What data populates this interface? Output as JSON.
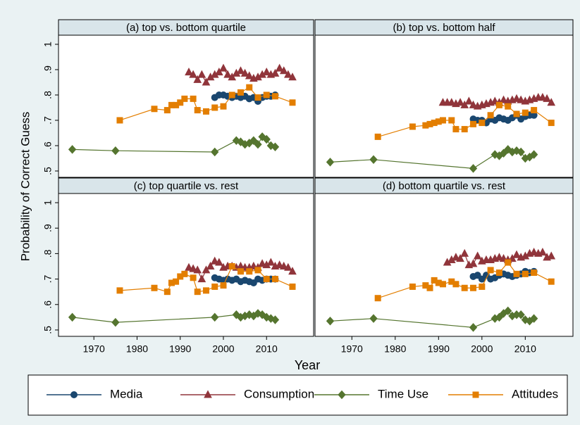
{
  "axis_labels": {
    "y": "Probability of Correct Guess",
    "x": "Year"
  },
  "chart_data": [
    {
      "type": "line",
      "title": "(a) top vs. bottom quartile",
      "xlim": [
        1961.8,
        2020.9
      ],
      "ylim": [
        0.475,
        1.036
      ],
      "yticks": [
        {
          "value": 0.5,
          "label": ".5"
        },
        {
          "value": 0.6,
          "label": ".6"
        },
        {
          "value": 0.7,
          "label": ".7"
        },
        {
          "value": 0.8,
          "label": ".8"
        },
        {
          "value": 0.9,
          "label": ".9"
        },
        1
      ],
      "series": [
        {
          "name": "Media",
          "color": "#1a476f",
          "marker": "circle",
          "x": [
            1998,
            1999,
            2000,
            2001,
            2002,
            2003,
            2004,
            2005,
            2006,
            2007,
            2008,
            2009,
            2010,
            2011,
            2012
          ],
          "values": [
            0.79,
            0.8,
            0.8,
            0.795,
            0.79,
            0.795,
            0.79,
            0.795,
            0.785,
            0.79,
            0.775,
            0.79,
            0.795,
            0.795,
            0.8
          ]
        },
        {
          "name": "Consumption",
          "color": "#90353b",
          "marker": "triangle",
          "x": [
            1992,
            1993,
            1994,
            1995,
            1996,
            1997,
            1998,
            1999,
            2000,
            2001,
            2002,
            2003,
            2004,
            2005,
            2006,
            2007,
            2008,
            2009,
            2010,
            2011,
            2012,
            2013,
            2014,
            2015,
            2016
          ],
          "values": [
            0.89,
            0.88,
            0.86,
            0.88,
            0.85,
            0.87,
            0.88,
            0.89,
            0.905,
            0.88,
            0.87,
            0.885,
            0.895,
            0.885,
            0.875,
            0.865,
            0.87,
            0.88,
            0.89,
            0.88,
            0.885,
            0.905,
            0.895,
            0.88,
            0.87
          ]
        },
        {
          "name": "Time Use",
          "color": "#55752f",
          "marker": "diamond",
          "x": [
            1965,
            1975,
            1998,
            2003,
            2004,
            2005,
            2006,
            2007,
            2008,
            2009,
            2010,
            2011,
            2012
          ],
          "values": [
            0.585,
            0.58,
            0.575,
            0.62,
            0.615,
            0.605,
            0.61,
            0.62,
            0.605,
            0.635,
            0.625,
            0.6,
            0.595
          ]
        },
        {
          "name": "Attitudes",
          "color": "#e37e00",
          "marker": "square",
          "x": [
            1976,
            1984,
            1987,
            1988,
            1989,
            1990,
            1991,
            1993,
            1994,
            1996,
            1998,
            2000,
            2002,
            2004,
            2006,
            2008,
            2010,
            2012,
            2016
          ],
          "values": [
            0.7,
            0.745,
            0.74,
            0.76,
            0.76,
            0.77,
            0.785,
            0.785,
            0.74,
            0.735,
            0.75,
            0.755,
            0.8,
            0.81,
            0.83,
            0.79,
            0.8,
            0.795,
            0.77
          ]
        }
      ]
    },
    {
      "type": "line",
      "title": "(b) top vs. bottom half",
      "xlim": [
        1961.5,
        2021
      ],
      "ylim": [
        0.475,
        1.036
      ],
      "series": [
        {
          "name": "Media",
          "color": "#1a476f",
          "marker": "circle",
          "x": [
            1998,
            1999,
            2000,
            2001,
            2002,
            2003,
            2004,
            2005,
            2006,
            2007,
            2008,
            2009,
            2010,
            2011,
            2012
          ],
          "values": [
            0.705,
            0.7,
            0.7,
            0.69,
            0.705,
            0.7,
            0.71,
            0.705,
            0.7,
            0.71,
            0.72,
            0.705,
            0.715,
            0.72,
            0.72
          ]
        },
        {
          "name": "Consumption",
          "color": "#90353b",
          "marker": "triangle",
          "x": [
            1991,
            1992,
            1993,
            1994,
            1995,
            1996,
            1997,
            1998,
            1999,
            2000,
            2001,
            2002,
            2003,
            2004,
            2005,
            2006,
            2007,
            2008,
            2009,
            2010,
            2011,
            2012,
            2013,
            2014,
            2015,
            2016
          ],
          "values": [
            0.77,
            0.77,
            0.77,
            0.765,
            0.77,
            0.76,
            0.775,
            0.76,
            0.755,
            0.76,
            0.765,
            0.77,
            0.775,
            0.77,
            0.78,
            0.775,
            0.78,
            0.785,
            0.78,
            0.775,
            0.78,
            0.785,
            0.79,
            0.79,
            0.785,
            0.77
          ]
        },
        {
          "name": "Time Use",
          "color": "#55752f",
          "marker": "diamond",
          "x": [
            1965,
            1975,
            1998,
            2003,
            2004,
            2005,
            2006,
            2007,
            2008,
            2009,
            2010,
            2011,
            2012
          ],
          "values": [
            0.535,
            0.545,
            0.51,
            0.565,
            0.56,
            0.57,
            0.585,
            0.575,
            0.58,
            0.575,
            0.55,
            0.555,
            0.565
          ]
        },
        {
          "name": "Attitudes",
          "color": "#e37e00",
          "marker": "square",
          "x": [
            1976,
            1984,
            1987,
            1988,
            1989,
            1990,
            1991,
            1993,
            1994,
            1996,
            1998,
            2000,
            2002,
            2004,
            2006,
            2008,
            2010,
            2012,
            2016
          ],
          "values": [
            0.635,
            0.675,
            0.68,
            0.685,
            0.69,
            0.695,
            0.7,
            0.7,
            0.665,
            0.665,
            0.685,
            0.69,
            0.72,
            0.76,
            0.755,
            0.725,
            0.73,
            0.74,
            0.69
          ]
        }
      ]
    },
    {
      "type": "line",
      "title": "(c) top quartile vs. rest",
      "xlim": [
        1961.8,
        2020.9
      ],
      "ylim": [
        0.475,
        1.036
      ],
      "xticks": [
        1970,
        1980,
        1990,
        2000,
        2010
      ],
      "yticks": [
        {
          "value": 0.5,
          "label": ".5"
        },
        {
          "value": 0.6,
          "label": ".6"
        },
        {
          "value": 0.7,
          "label": ".7"
        },
        {
          "value": 0.8,
          "label": ".8"
        },
        {
          "value": 0.9,
          "label": ".9"
        },
        1
      ],
      "series": [
        {
          "name": "Media",
          "color": "#1a476f",
          "marker": "circle",
          "x": [
            1998,
            1999,
            2000,
            2001,
            2002,
            2003,
            2004,
            2005,
            2006,
            2007,
            2008,
            2009,
            2010,
            2011,
            2012
          ],
          "values": [
            0.705,
            0.7,
            0.695,
            0.7,
            0.695,
            0.7,
            0.69,
            0.695,
            0.69,
            0.685,
            0.7,
            0.695,
            0.7,
            0.7,
            0.7
          ]
        },
        {
          "name": "Consumption",
          "color": "#90353b",
          "marker": "triangle",
          "x": [
            1992,
            1993,
            1994,
            1995,
            1996,
            1997,
            1998,
            1999,
            2000,
            2001,
            2002,
            2003,
            2004,
            2005,
            2006,
            2007,
            2008,
            2009,
            2010,
            2011,
            2012,
            2013,
            2014,
            2015,
            2016
          ],
          "values": [
            0.745,
            0.74,
            0.735,
            0.7,
            0.735,
            0.75,
            0.77,
            0.765,
            0.745,
            0.75,
            0.75,
            0.745,
            0.75,
            0.745,
            0.745,
            0.75,
            0.745,
            0.76,
            0.755,
            0.765,
            0.75,
            0.755,
            0.75,
            0.745,
            0.73
          ]
        },
        {
          "name": "Time Use",
          "color": "#55752f",
          "marker": "diamond",
          "x": [
            1965,
            1975,
            1998,
            2003,
            2004,
            2005,
            2006,
            2007,
            2008,
            2009,
            2010,
            2011,
            2012
          ],
          "values": [
            0.55,
            0.53,
            0.55,
            0.56,
            0.55,
            0.555,
            0.56,
            0.555,
            0.565,
            0.56,
            0.55,
            0.545,
            0.54
          ]
        },
        {
          "name": "Attitudes",
          "color": "#e37e00",
          "marker": "square",
          "x": [
            1976,
            1984,
            1987,
            1988,
            1989,
            1990,
            1991,
            1993,
            1994,
            1996,
            1998,
            2000,
            2002,
            2004,
            2006,
            2008,
            2010,
            2012,
            2016
          ],
          "values": [
            0.655,
            0.665,
            0.65,
            0.685,
            0.69,
            0.71,
            0.72,
            0.705,
            0.65,
            0.655,
            0.67,
            0.675,
            0.75,
            0.73,
            0.73,
            0.735,
            0.7,
            0.7,
            0.67
          ]
        }
      ]
    },
    {
      "type": "line",
      "title": "(d) bottom quartile vs. rest",
      "xlim": [
        1961.5,
        2021
      ],
      "ylim": [
        0.475,
        1.036
      ],
      "xticks": [
        1970,
        1980,
        1990,
        2000,
        2010
      ],
      "series": [
        {
          "name": "Media",
          "color": "#1a476f",
          "marker": "circle",
          "x": [
            1998,
            1999,
            2000,
            2001,
            2002,
            2003,
            2004,
            2005,
            2006,
            2007,
            2008,
            2009,
            2010,
            2011,
            2012
          ],
          "values": [
            0.71,
            0.715,
            0.7,
            0.715,
            0.7,
            0.705,
            0.715,
            0.72,
            0.715,
            0.71,
            0.715,
            0.72,
            0.73,
            0.725,
            0.73
          ]
        },
        {
          "name": "Consumption",
          "color": "#90353b",
          "marker": "triangle",
          "x": [
            1992,
            1993,
            1994,
            1995,
            1996,
            1997,
            1998,
            1999,
            2000,
            2001,
            2002,
            2003,
            2004,
            2005,
            2006,
            2007,
            2008,
            2009,
            2010,
            2011,
            2012,
            2013,
            2014,
            2015,
            2016
          ],
          "values": [
            0.765,
            0.775,
            0.785,
            0.78,
            0.8,
            0.755,
            0.76,
            0.79,
            0.77,
            0.775,
            0.775,
            0.78,
            0.785,
            0.78,
            0.775,
            0.78,
            0.795,
            0.785,
            0.79,
            0.8,
            0.805,
            0.8,
            0.805,
            0.785,
            0.79
          ]
        },
        {
          "name": "Time Use",
          "color": "#55752f",
          "marker": "diamond",
          "x": [
            1965,
            1975,
            1998,
            2003,
            2004,
            2005,
            2006,
            2007,
            2008,
            2009,
            2010,
            2011,
            2012
          ],
          "values": [
            0.535,
            0.545,
            0.51,
            0.545,
            0.55,
            0.565,
            0.575,
            0.555,
            0.56,
            0.56,
            0.54,
            0.535,
            0.545
          ]
        },
        {
          "name": "Attitudes",
          "color": "#e37e00",
          "marker": "square",
          "x": [
            1976,
            1984,
            1987,
            1988,
            1989,
            1990,
            1991,
            1993,
            1994,
            1996,
            1998,
            2000,
            2002,
            2004,
            2006,
            2008,
            2010,
            2012,
            2016
          ],
          "values": [
            0.625,
            0.67,
            0.675,
            0.665,
            0.695,
            0.685,
            0.68,
            0.69,
            0.68,
            0.665,
            0.665,
            0.67,
            0.735,
            0.725,
            0.765,
            0.72,
            0.72,
            0.725,
            0.69
          ]
        }
      ]
    }
  ]
}
